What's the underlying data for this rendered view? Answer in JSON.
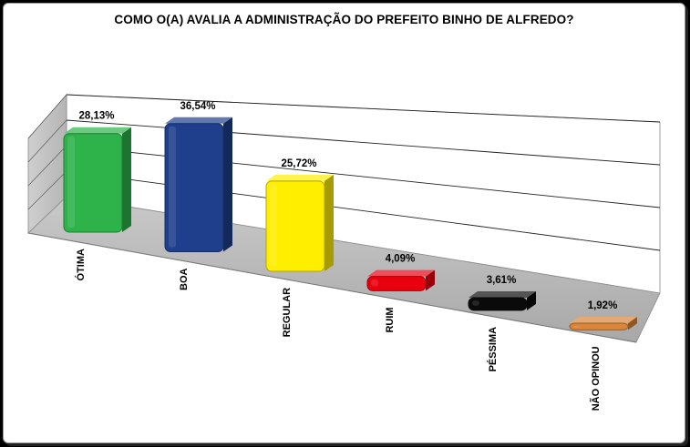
{
  "chart_data": {
    "type": "bar",
    "title": "COMO O(A) AVALIA A ADMINISTRAÇÃO DO PREFEITO BINHO DE ALFREDO?",
    "categories": [
      "ÓTIMA",
      "BOA",
      "REGULAR",
      "RUIM",
      "PÉSSIMA",
      "NÃO OPINOU"
    ],
    "values": [
      28.13,
      36.54,
      25.72,
      4.09,
      3.61,
      1.92
    ],
    "data_labels": [
      "28,13%",
      "36,54%",
      "25,72%",
      "4,09%",
      "3,61%",
      "1,92%"
    ],
    "colors": [
      "#2db34a",
      "#1f3f8c",
      "#ffee00",
      "#e8000f",
      "#0a0a0a",
      "#d9863a"
    ],
    "ylim": [
      0,
      40
    ],
    "grid": true,
    "legend": "none",
    "style": "3d-perspective"
  }
}
